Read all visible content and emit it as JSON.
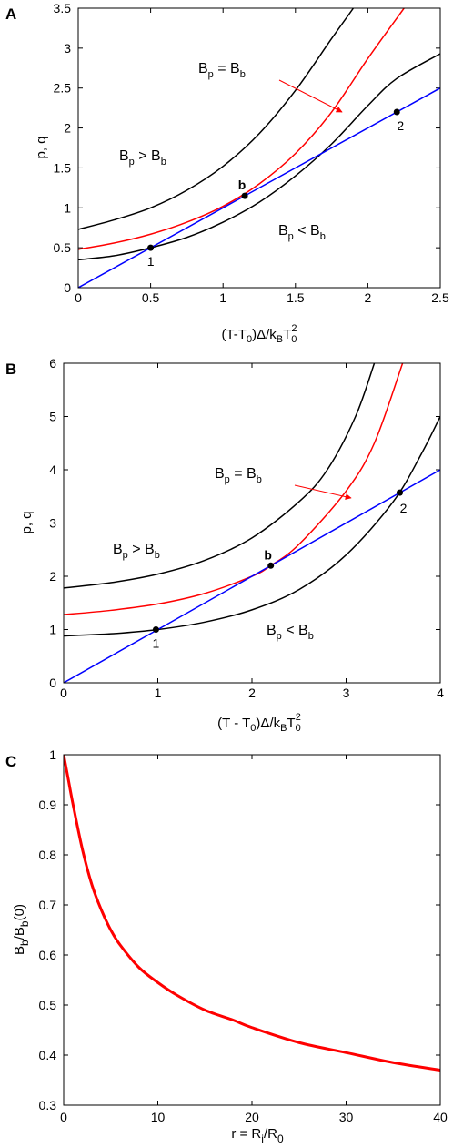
{
  "chart_data": [
    {
      "panel_label": "A",
      "type": "line",
      "xlabel": {
        "main": "(T-T",
        "sub0": "0",
        "mid": ")Δ/k",
        "subB": "B",
        "end": "T",
        "sub0b": "0",
        "sup": "2"
      },
      "ylabel": "p, q",
      "xlim": [
        0,
        2.5
      ],
      "ylim": [
        0,
        3.5
      ],
      "xticks": [
        "0",
        "0.5",
        "1",
        "1.5",
        "2",
        "2.5"
      ],
      "yticks": [
        "0",
        "0.5",
        "1",
        "1.5",
        "2",
        "2.5",
        "3",
        "3.5"
      ],
      "series": [
        {
          "color": "#000000",
          "x": [
            0,
            0.25,
            0.5,
            0.75,
            1.0,
            1.25,
            1.5,
            1.75,
            2.0,
            2.2,
            2.5
          ],
          "y": [
            0.35,
            0.4,
            0.5,
            0.63,
            0.82,
            1.07,
            1.4,
            1.8,
            2.28,
            2.62,
            2.93
          ]
        },
        {
          "color": "#ff0000",
          "x": [
            0,
            0.25,
            0.5,
            0.75,
            1.0,
            1.25,
            1.5,
            1.75,
            2.0,
            2.25
          ],
          "y": [
            0.48,
            0.56,
            0.67,
            0.82,
            1.02,
            1.3,
            1.68,
            2.2,
            2.87,
            3.5
          ]
        },
        {
          "color": "#000000",
          "x": [
            0,
            0.25,
            0.5,
            0.75,
            1.0,
            1.25,
            1.5,
            1.75,
            1.9
          ],
          "y": [
            0.73,
            0.85,
            1.0,
            1.22,
            1.52,
            1.93,
            2.47,
            3.12,
            3.5
          ]
        },
        {
          "color": "#0000ff",
          "x": [
            0,
            2.5
          ],
          "y": [
            0,
            2.5
          ]
        }
      ],
      "points": [
        {
          "x": 0.5,
          "y": 0.5,
          "label": "1"
        },
        {
          "x": 1.15,
          "y": 1.15,
          "label": "b"
        },
        {
          "x": 2.2,
          "y": 2.2,
          "label": "2"
        }
      ],
      "annotations": {
        "eq": {
          "a": "B",
          "as": "p",
          "op": " = ",
          "b": "B",
          "bs": "b"
        },
        "gt": {
          "a": "B",
          "as": "p",
          "op": " > ",
          "b": "B",
          "bs": "b"
        },
        "lt": {
          "a": "B",
          "as": "p",
          "op": " < ",
          "b": "B",
          "bs": "b"
        }
      },
      "colors": {
        "red": "#ff0000",
        "blue": "#0000ff",
        "black": "#000000"
      }
    },
    {
      "panel_label": "B",
      "type": "line",
      "xlabel": {
        "main": "(T - T",
        "sub0": "0",
        "mid": ")Δ/k",
        "subB": "B",
        "end": "T",
        "sub0b": "0",
        "sup": "2"
      },
      "ylabel": "p, q",
      "xlim": [
        0,
        4
      ],
      "ylim": [
        0,
        6
      ],
      "xticks": [
        "0",
        "1",
        "2",
        "3",
        "4"
      ],
      "yticks": [
        "0",
        "1",
        "2",
        "3",
        "4",
        "5",
        "6"
      ],
      "series": [
        {
          "color": "#000000",
          "x": [
            0,
            0.5,
            1.0,
            1.5,
            2.0,
            2.5,
            3.0,
            3.5,
            3.8,
            4.0
          ],
          "y": [
            0.88,
            0.92,
            1.0,
            1.14,
            1.37,
            1.75,
            2.4,
            3.4,
            4.3,
            5.0
          ]
        },
        {
          "color": "#ff0000",
          "x": [
            0,
            0.5,
            1.0,
            1.5,
            2.0,
            2.2,
            2.5,
            3.0,
            3.3,
            3.6
          ],
          "y": [
            1.28,
            1.36,
            1.48,
            1.68,
            2.0,
            2.2,
            2.6,
            3.6,
            4.5,
            6.0
          ]
        },
        {
          "color": "#000000",
          "x": [
            0,
            0.5,
            1.0,
            1.5,
            2.0,
            2.5,
            2.8,
            3.1,
            3.3
          ],
          "y": [
            1.78,
            1.88,
            2.04,
            2.3,
            2.72,
            3.4,
            4.0,
            5.0,
            6.0
          ]
        },
        {
          "color": "#0000ff",
          "x": [
            0,
            4
          ],
          "y": [
            0,
            4
          ]
        }
      ],
      "points": [
        {
          "x": 0.98,
          "y": 1.0,
          "label": "1"
        },
        {
          "x": 2.2,
          "y": 2.2,
          "label": "b"
        },
        {
          "x": 3.57,
          "y": 3.57,
          "label": "2"
        }
      ],
      "annotations": {
        "eq": {
          "a": "B",
          "as": "p",
          "op": " = ",
          "b": "B",
          "bs": "b"
        },
        "gt": {
          "a": "B",
          "as": "p",
          "op": " > ",
          "b": "B",
          "bs": "b"
        },
        "lt": {
          "a": "B",
          "as": "p",
          "op": " < ",
          "b": "B",
          "bs": "b"
        }
      },
      "colors": {
        "red": "#ff0000",
        "blue": "#0000ff",
        "black": "#000000"
      }
    },
    {
      "panel_label": "C",
      "type": "line",
      "xlabel": {
        "main": "r = R",
        "subi": "i",
        "mid": "/R",
        "sub0": "0"
      },
      "ylabel": {
        "main": "B",
        "sub1": "b",
        "mid": "/B",
        "sub2": "b",
        "end": "(0)"
      },
      "xlim": [
        0,
        40
      ],
      "ylim": [
        0.3,
        1
      ],
      "xticks": [
        "0",
        "10",
        "20",
        "30",
        "40"
      ],
      "yticks": [
        "0.3",
        "0.4",
        "0.5",
        "0.6",
        "0.7",
        "0.8",
        "0.9",
        "1"
      ],
      "series": [
        {
          "color": "#ff0000",
          "x": [
            0,
            0.5,
            1,
            2,
            3,
            4,
            5,
            6,
            8,
            10,
            12,
            15,
            18,
            20,
            25,
            30,
            35,
            40
          ],
          "y": [
            1.0,
            0.95,
            0.9,
            0.81,
            0.74,
            0.69,
            0.65,
            0.62,
            0.575,
            0.545,
            0.52,
            0.49,
            0.47,
            0.455,
            0.425,
            0.405,
            0.385,
            0.37
          ]
        }
      ],
      "colors": {
        "red": "#ff0000"
      }
    }
  ]
}
